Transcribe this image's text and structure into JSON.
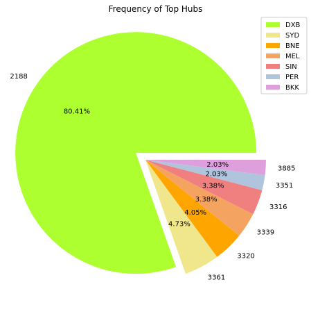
{
  "chart_data": {
    "type": "pie",
    "title": "Frequency of Top Hubs",
    "start_angle_deg": 0,
    "direction": "counterclockwise",
    "explode_index": 0,
    "slices": [
      {
        "legend": "DXB",
        "outer_label": "2188",
        "pct_label": "80.41%",
        "value": 80.41,
        "color": "#adff2f"
      },
      {
        "legend": "SYD",
        "outer_label": "3361",
        "pct_label": "4.73%",
        "value": 4.73,
        "color": "#f0e68c"
      },
      {
        "legend": "BNE",
        "outer_label": "3320",
        "pct_label": "4.05%",
        "value": 4.05,
        "color": "#ffa500"
      },
      {
        "legend": "MEL",
        "outer_label": "3339",
        "pct_label": "3.38%",
        "value": 3.38,
        "color": "#f4a460"
      },
      {
        "legend": "SIN",
        "outer_label": "3316",
        "pct_label": "3.38%",
        "value": 3.38,
        "color": "#f08080"
      },
      {
        "legend": "PER",
        "outer_label": "3351",
        "pct_label": "2.03%",
        "value": 2.03,
        "color": "#b0c4de"
      },
      {
        "legend": "BKK",
        "outer_label": "3885",
        "pct_label": "2.03%",
        "value": 2.03,
        "color": "#dda0dd"
      }
    ],
    "legend_position": "upper right"
  }
}
